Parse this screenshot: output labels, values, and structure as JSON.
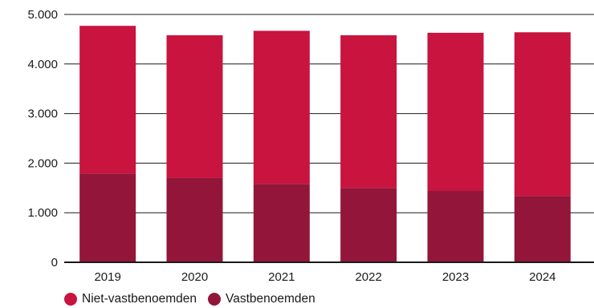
{
  "chart_data": {
    "type": "bar",
    "stacked": true,
    "categories": [
      "2019",
      "2020",
      "2021",
      "2022",
      "2023",
      "2024"
    ],
    "series": [
      {
        "name": "Vastbenoemden",
        "values": [
          1790,
          1700,
          1580,
          1500,
          1440,
          1340
        ],
        "color": "#93163a"
      },
      {
        "name": "Niet-vastbenoemden",
        "values": [
          2980,
          2880,
          3090,
          3080,
          3190,
          3300
        ],
        "color": "#c8143f"
      }
    ],
    "ylim": [
      0,
      5000
    ],
    "yticks": [
      0,
      1000,
      2000,
      3000,
      4000,
      5000
    ],
    "ytick_labels": [
      "0",
      "1.000",
      "2.000",
      "3.000",
      "4.000",
      "5.000"
    ],
    "grid": true,
    "legend_position": "bottom-left",
    "xlabel": "",
    "ylabel": ""
  },
  "legend": [
    {
      "label": "Niet-vastbenoemden",
      "color": "#c8143f"
    },
    {
      "label": "Vastbenoemden",
      "color": "#93163a"
    }
  ]
}
